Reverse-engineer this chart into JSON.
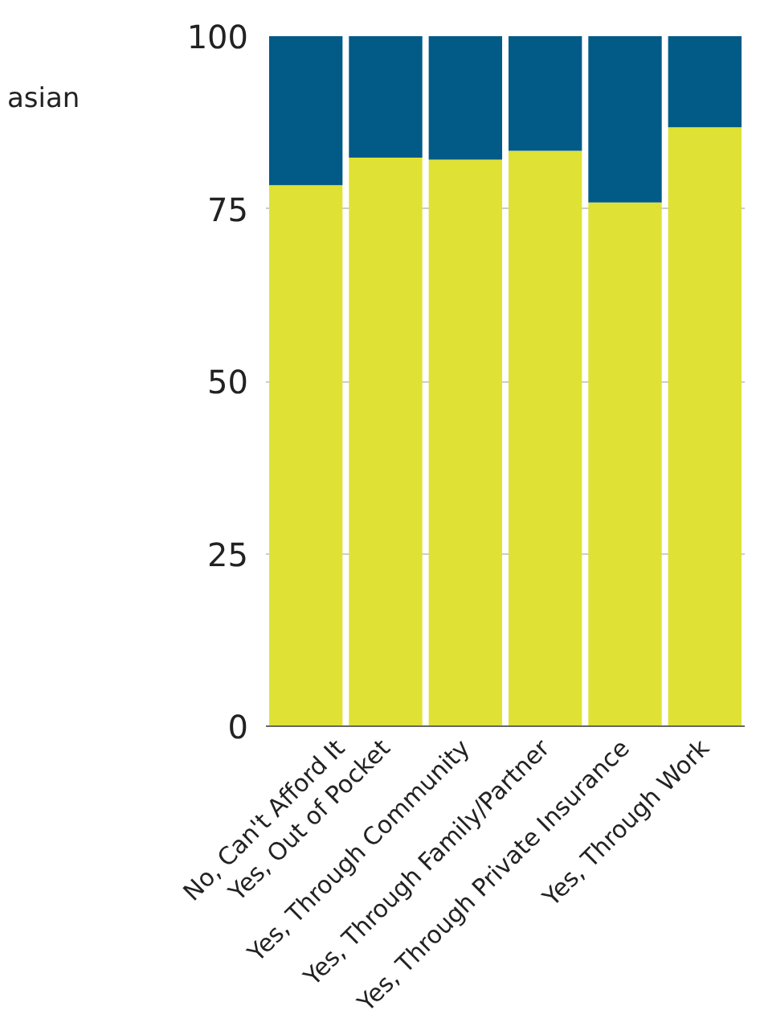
{
  "chart_data": {
    "type": "bar",
    "stacked": true,
    "categories": [
      "No, Can't Afford It",
      "Yes, Out of Pocket",
      "Yes, Through Community",
      "Yes, Through Family/Partner",
      "Yes, Through Private Insurance",
      "Yes, Through Work"
    ],
    "series": [
      {
        "color": "#dfe235",
        "values": [
          78.4,
          82.4,
          82.1,
          83.4,
          75.9,
          86.8
        ]
      },
      {
        "color": "#025a87",
        "values": [
          21.6,
          17.6,
          17.9,
          16.6,
          24.1,
          13.2
        ]
      }
    ],
    "ylim": [
      0,
      100
    ],
    "yticks": [
      0,
      25,
      50,
      75,
      100
    ],
    "grid": "y",
    "annotations": [
      "asian"
    ]
  }
}
